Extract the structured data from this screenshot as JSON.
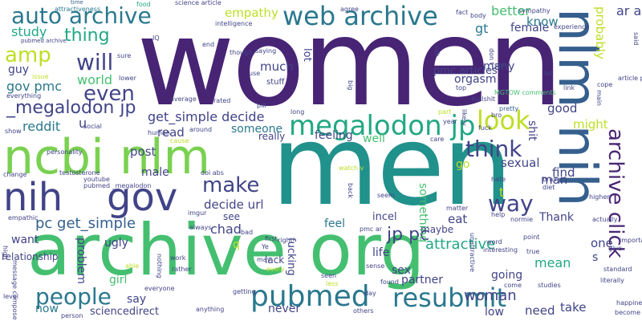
{
  "palette": {
    "purple": "#482475",
    "indigo": "#414487",
    "blue": "#355f8d",
    "steel": "#2a788e",
    "teal": "#21918c",
    "green": "#22a884",
    "lime": "#44bf70",
    "yellowgreen": "#7ad151",
    "yellow": "#bddf26",
    "dark": "#440154"
  },
  "words": [
    "women",
    "men",
    "archive org",
    "ncbi nlm",
    "nlm nih",
    "nih",
    "gov",
    "megalodon jp",
    "web archive",
    "auto archive",
    "pubmed",
    "resubmit",
    "look",
    "think",
    "archive click",
    "people",
    "will",
    "even",
    "make",
    "_megalodon jp",
    "amp",
    "thing",
    "jp pc",
    "pc get_simple",
    "get_simple decide",
    "decide url",
    "woman",
    "way",
    "attractive",
    "gov pmc",
    "world",
    "reddit",
    "study",
    "guy",
    "empathy",
    "better",
    "female",
    "know",
    "gt",
    "probably",
    "one",
    "mean",
    "good",
    "might",
    "man",
    "find",
    "sexual",
    "go",
    "eat",
    "something",
    "feel",
    "chad",
    "see",
    "read",
    "post",
    "male",
    "someone",
    "feeling",
    "well",
    "really",
    "much",
    "lot",
    "life",
    "sex",
    "partner",
    "going",
    "maybe",
    "ugly",
    "say",
    "girl",
    "want",
    "problem",
    "relationship",
    "sciencedirect",
    "never",
    "now",
    "need",
    "take",
    "low",
    "shit",
    "Thank",
    "orgasm",
    "many",
    "pmc articles",
    "time",
    "science article",
    "food",
    "attractiveness",
    "intelligence",
    "pubmed archive",
    "body",
    "sympathy",
    "bullshit",
    "fuck",
    "MGTOW comments",
    "pretty",
    "social",
    "doi abs",
    "testosterone",
    "pubmed _megalodon",
    "youtube",
    "always",
    "imgur",
    "incel",
    "hate",
    "brain",
    "normie",
    "diet",
    "higher",
    "important",
    "give",
    "standard",
    "happiness",
    "become",
    "person",
    "level",
    "high",
    "message compose",
    "empathic",
    "nothing",
    "work",
    "rather",
    "able",
    "everyone",
    "anything",
    "getting",
    "bad",
    "first",
    "right",
    "may",
    "lack",
    "every",
    "seen",
    "less",
    "day",
    "others",
    "sense",
    "found",
    "interesting",
    "studies",
    "come",
    "unattractive",
    "literally",
    "true",
    "seem",
    "matter",
    "help",
    "back",
    "word",
    "point",
    "pmc ar",
    "fucking",
    "actually",
    "don t",
    "still",
    "let",
    "cope",
    "link",
    "article pii",
    "main",
    "said",
    "experience",
    "sub",
    "top",
    "stuff",
    "use",
    "saying",
    "though",
    "sure",
    "lower",
    "issue",
    "everything",
    "average",
    "rated",
    "long",
    "around",
    "human",
    "cause",
    "personality",
    "change",
    "show",
    "part",
    "year",
    "bro",
    "care",
    "likely",
    "fact",
    "agree",
    "end",
    "IQ",
    "big",
    "ar archive",
    "u",
    "t",
    "s",
    "q",
    "Ye",
    "watch v",
    "pill",
    "also"
  ]
}
